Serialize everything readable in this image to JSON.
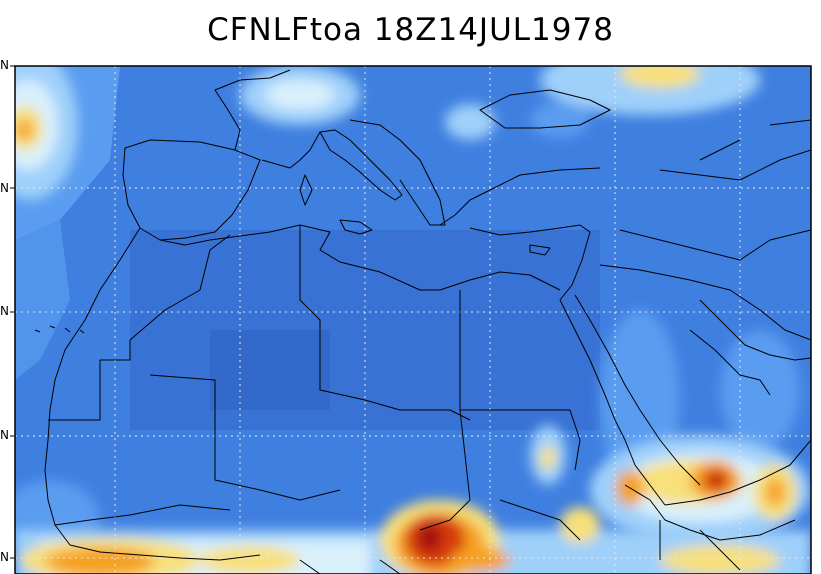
{
  "title": "CFNLFtoa 18Z14JUL1978",
  "lat_tick_labels": [
    "N",
    "N",
    "N",
    "N",
    "N"
  ],
  "colors": {
    "background_blue": "#3f7fe0",
    "mid_blue": "#5a9cf0",
    "light_blue": "#9fd0fa",
    "pale": "#d9f0fc",
    "yellow": "#f8e07a",
    "orange": "#f5a020",
    "red": "#d63a10",
    "dark_red": "#a50f0f",
    "coast_line": "#000000",
    "grid_line": "#e8e8e8"
  }
}
